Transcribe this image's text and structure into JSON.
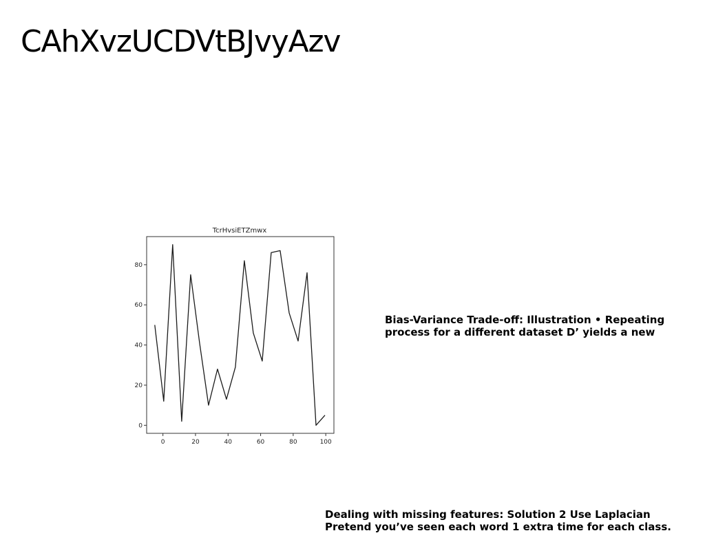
{
  "page": {
    "title": "CAhXvzUCDVtBJvyAzv",
    "caption_right": "Bias-Variance Trade-off: Illustration • Repeating process for a different dataset D’ yields a new",
    "caption_bottom_line1": "Dealing with missing features: Solution 2 Use Laplacian",
    "caption_bottom_line2": "Pretend you’ve seen each word 1 extra time for each class."
  },
  "chart_data": {
    "type": "line",
    "title": "TcrHvsiETZmwx",
    "xlabel": "",
    "ylabel": "",
    "xlim": [
      -10,
      105
    ],
    "ylim": [
      -4,
      94
    ],
    "xticks": [
      0,
      20,
      40,
      60,
      80,
      100
    ],
    "yticks": [
      0,
      20,
      40,
      60,
      80
    ],
    "grid": false,
    "line_color": "#1a1a1a",
    "series": [
      {
        "x": [
          -5,
          0.5,
          6,
          11.5,
          17,
          22.5,
          28,
          33.5,
          39,
          44.5,
          50,
          55.5,
          61,
          66.5,
          72,
          77.5,
          83,
          88.5,
          94,
          99.5
        ],
        "y": [
          50,
          12,
          90,
          2,
          75,
          41,
          10,
          28,
          13,
          29,
          82,
          46,
          32,
          86,
          87,
          56,
          42,
          76,
          0,
          5
        ]
      }
    ]
  }
}
